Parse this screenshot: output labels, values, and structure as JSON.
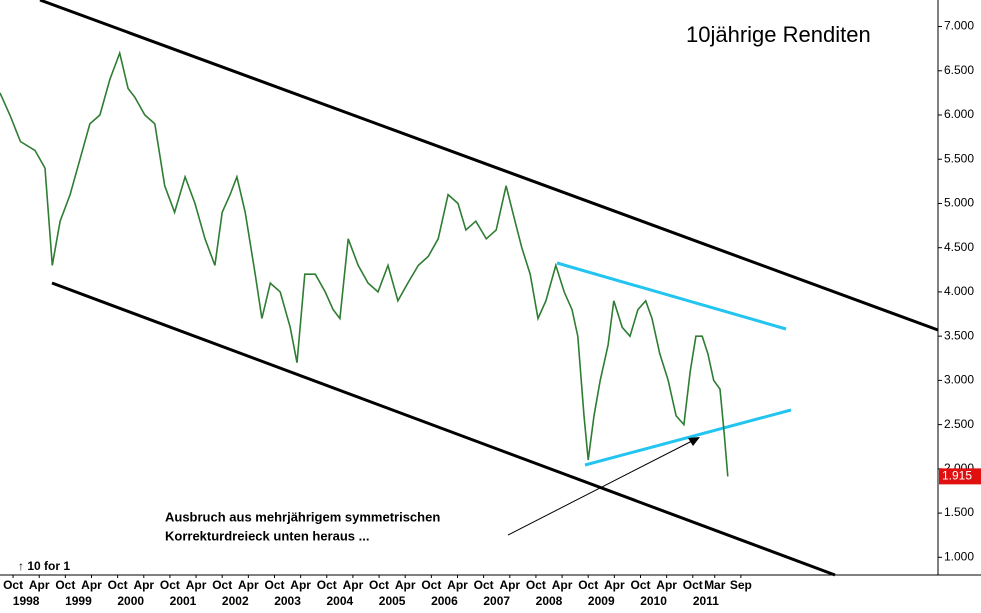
{
  "chart_data": {
    "type": "line",
    "title": "10jährige Renditen",
    "annotations": [
      "Ausbruch aus mehrjährigem symmetrischen",
      "Korrekturdreieck unten heraus ...",
      "↑ 10 for 1"
    ],
    "x": [
      1997.5,
      1997.69,
      1997.89,
      1998.17,
      1998.36,
      1998.5,
      1998.65,
      1998.84,
      1999.03,
      1999.22,
      1999.41,
      1999.6,
      1999.79,
      1999.95,
      2000.08,
      2000.27,
      2000.46,
      2000.65,
      2000.84,
      2001.04,
      2001.23,
      2001.42,
      2001.61,
      2001.75,
      2001.9,
      2002.03,
      2002.19,
      2002.38,
      2002.51,
      2002.67,
      2002.86,
      2003.05,
      2003.18,
      2003.33,
      2003.53,
      2003.72,
      2003.87,
      2004.0,
      2004.16,
      2004.35,
      2004.54,
      2004.73,
      2004.92,
      2005.11,
      2005.3,
      2005.5,
      2005.69,
      2005.88,
      2006.07,
      2006.26,
      2006.41,
      2006.6,
      2006.8,
      2006.99,
      2007.18,
      2007.35,
      2007.48,
      2007.64,
      2007.79,
      2007.94,
      2008.13,
      2008.29,
      2008.44,
      2008.55,
      2008.67,
      2008.75,
      2008.86,
      2008.98,
      2009.13,
      2009.24,
      2009.4,
      2009.55,
      2009.7,
      2009.85,
      2009.97,
      2010.12,
      2010.28,
      2010.43,
      2010.58,
      2010.7,
      2010.81,
      2010.93,
      2011.04,
      2011.15,
      2011.27,
      2011.35,
      2011.42
    ],
    "series": [
      {
        "name": "Rendite",
        "color": "#2e7d32",
        "values": [
          6.25,
          6.0,
          5.7,
          5.6,
          5.4,
          4.3,
          4.8,
          5.1,
          5.5,
          5.9,
          6.0,
          6.4,
          6.7,
          6.3,
          6.2,
          6.0,
          5.9,
          5.2,
          4.9,
          5.3,
          5.0,
          4.6,
          4.3,
          4.9,
          5.1,
          5.3,
          4.9,
          4.2,
          3.7,
          4.1,
          4.0,
          3.6,
          3.2,
          4.2,
          4.2,
          4.0,
          3.8,
          3.7,
          4.6,
          4.3,
          4.1,
          4.0,
          4.3,
          3.9,
          4.1,
          4.3,
          4.4,
          4.6,
          5.1,
          5.0,
          4.7,
          4.8,
          4.6,
          4.7,
          5.2,
          4.8,
          4.5,
          4.2,
          3.7,
          3.9,
          4.3,
          4.0,
          3.8,
          3.5,
          2.6,
          2.1,
          2.6,
          3.0,
          3.4,
          3.9,
          3.6,
          3.5,
          3.8,
          3.9,
          3.7,
          3.3,
          3.0,
          2.6,
          2.5,
          3.1,
          3.5,
          3.5,
          3.3,
          3.0,
          2.9,
          2.4,
          1.915
        ]
      }
    ],
    "xlim": [
      1997.5,
      2015.44
    ],
    "ylim": [
      0.8,
      7.3
    ],
    "yticks": [
      {
        "value": 1,
        "label": "1.000"
      },
      {
        "value": 1.5,
        "label": "1.500"
      },
      {
        "value": 2,
        "label": "2.000"
      },
      {
        "value": 2.5,
        "label": "2.500"
      },
      {
        "value": 3,
        "label": "3.000"
      },
      {
        "value": 3.5,
        "label": "3.500"
      },
      {
        "value": 4,
        "label": "4.000"
      },
      {
        "value": 4.5,
        "label": "4.500"
      },
      {
        "value": 5,
        "label": "5.000"
      },
      {
        "value": 5.5,
        "label": "5.500"
      },
      {
        "value": 6,
        "label": "6.000"
      },
      {
        "value": 6.5,
        "label": "6.500"
      },
      {
        "value": 7,
        "label": "7.000"
      }
    ],
    "xticks": [
      {
        "value": 1997.75,
        "label": "Oct"
      },
      {
        "value": 1998.25,
        "label": "Apr"
      },
      {
        "value": 1998.75,
        "label": "Oct"
      },
      {
        "value": 1999.25,
        "label": "Apr"
      },
      {
        "value": 1999.75,
        "label": "Oct"
      },
      {
        "value": 2000.25,
        "label": "Apr"
      },
      {
        "value": 2000.75,
        "label": "Oct"
      },
      {
        "value": 2001.25,
        "label": "Apr"
      },
      {
        "value": 2001.75,
        "label": "Oct"
      },
      {
        "value": 2002.25,
        "label": "Apr"
      },
      {
        "value": 2002.75,
        "label": "Oct"
      },
      {
        "value": 2003.25,
        "label": "Apr"
      },
      {
        "value": 2003.75,
        "label": "Oct"
      },
      {
        "value": 2004.25,
        "label": "Apr"
      },
      {
        "value": 2004.75,
        "label": "Oct"
      },
      {
        "value": 2005.25,
        "label": "Apr"
      },
      {
        "value": 2005.75,
        "label": "Oct"
      },
      {
        "value": 2006.25,
        "label": "Apr"
      },
      {
        "value": 2006.75,
        "label": "Oct"
      },
      {
        "value": 2007.25,
        "label": "Apr"
      },
      {
        "value": 2007.75,
        "label": "Oct"
      },
      {
        "value": 2008.25,
        "label": "Apr"
      },
      {
        "value": 2008.75,
        "label": "Oct"
      },
      {
        "value": 2009.25,
        "label": "Apr"
      },
      {
        "value": 2009.75,
        "label": "Oct"
      },
      {
        "value": 2010.25,
        "label": "Apr"
      },
      {
        "value": 2010.75,
        "label": "Oct"
      },
      {
        "value": 2011.17,
        "label": "Mar"
      },
      {
        "value": 2011.67,
        "label": "Sep"
      }
    ],
    "xyears": [
      1998,
      1999,
      2000,
      2001,
      2002,
      2003,
      2004,
      2005,
      2006,
      2007,
      2008,
      2009,
      2010,
      2011
    ]
  }
}
